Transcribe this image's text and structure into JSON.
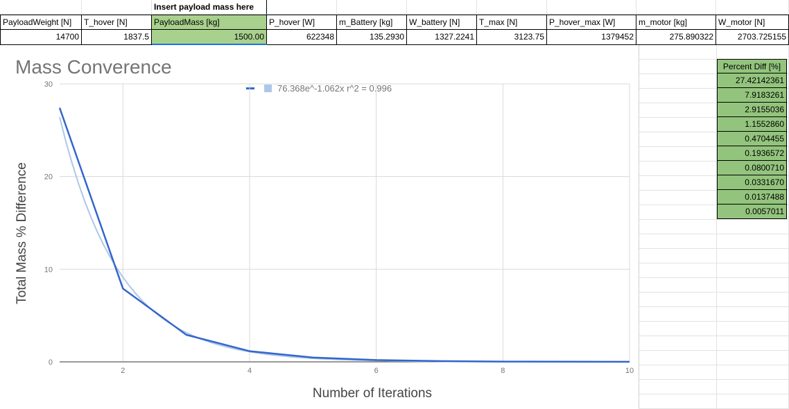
{
  "sheet": {
    "instruction": "Insert payload mass here",
    "headers": [
      "PayloadWeight [N]",
      "T_hover [N]",
      "PayloadMass [kg]",
      "P_hover [W]",
      "m_Battery [kg]",
      "W_battery [N]",
      "T_max [N]",
      "P_hover_max [W]",
      "m_motor [kg]",
      "W_motor [N]"
    ],
    "values": [
      "14700",
      "1837.5",
      "1500.00",
      "622348",
      "135.2930",
      "1327.2241",
      "3123.75",
      "1379452",
      "275.890322",
      "2703.725155"
    ],
    "percent_diff_header": "Percent Diff [%]",
    "percent_diff": [
      "27.42142361",
      "7.9183261",
      "2.9155036",
      "1.1552860",
      "0.4704455",
      "0.1936572",
      "0.0800710",
      "0.0331670",
      "0.0137488",
      "0.0057011"
    ]
  },
  "colors": {
    "input_cell": "#a9d18e",
    "diff_cells": "#93c47d",
    "series": "#3366cc",
    "trendline": "#aec7e8"
  },
  "chart_data": {
    "type": "line",
    "title": "Mass Converence",
    "xlabel": "Number of Iterations",
    "ylabel": "Total Mass % Difference",
    "x": [
      1,
      2,
      3,
      4,
      5,
      6,
      7,
      8,
      9,
      10
    ],
    "series": [
      {
        "values": [
          27.42142361,
          7.9183261,
          2.9155036,
          1.155286,
          0.4704455,
          0.1936572,
          0.080071,
          0.033167,
          0.0137488,
          0.0057011
        ]
      }
    ],
    "trendline": {
      "label": "76.368e^-1.062x r^2 = 0.996",
      "a": 76.368,
      "b": -1.062
    },
    "xlim": [
      1,
      10
    ],
    "ylim": [
      0,
      30
    ],
    "xticks": [
      "2",
      "4",
      "6",
      "8",
      "10"
    ],
    "yticks": [
      "0",
      "10",
      "20",
      "30"
    ],
    "grid": true,
    "legend": "top"
  }
}
